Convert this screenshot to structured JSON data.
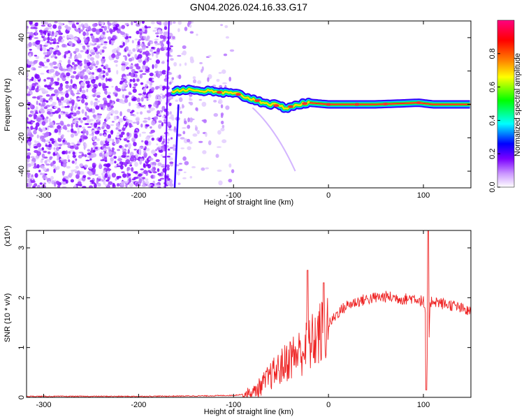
{
  "chart_data": [
    {
      "type": "heatmap",
      "title": "GN04.2026.024.16.33.G17",
      "xlabel": "Height of straight line (km)",
      "ylabel": "Frequency (Hz)",
      "xlim": [
        -318,
        150
      ],
      "ylim": [
        -50,
        50
      ],
      "xticks": [
        -300,
        -200,
        -100,
        0,
        100
      ],
      "yticks": [
        -40,
        -20,
        0,
        20,
        40
      ],
      "colorbar": {
        "label": "Normalized spectral amplitude",
        "range": [
          0,
          1
        ],
        "ticks": [
          "0.0",
          "0.2",
          "0.4",
          "0.6",
          "0.8"
        ],
        "colors": [
          "#ffffff",
          "#cc99ff",
          "#7b00ff",
          "#0000ff",
          "#00ffff",
          "#00ff00",
          "#ffff00",
          "#ff8000",
          "#ff0000",
          "#ff0080"
        ]
      },
      "ridge": {
        "description_values_only": true,
        "x": [
          -165,
          -150,
          -130,
          -110,
          -95,
          -80,
          -60,
          -45,
          -30,
          -20,
          0,
          50,
          95,
          110,
          150
        ],
        "freq_hz": [
          8,
          9,
          8,
          7,
          6,
          3,
          0,
          -2,
          0,
          1,
          0,
          0,
          1,
          0,
          0
        ]
      },
      "grid": false
    },
    {
      "type": "line",
      "xlabel": "Height of straight line (km)",
      "ylabel": "SNR (10 * v/v)",
      "scale_label": "(x10⁴)",
      "xlim": [
        -318,
        150
      ],
      "ylim": [
        0,
        3.35
      ],
      "xticks": [
        -300,
        -200,
        -100,
        0,
        100
      ],
      "yticks": [
        0,
        1,
        2,
        3
      ],
      "color": "#ee2222",
      "series_envelope": {
        "x": [
          -318,
          -250,
          -200,
          -130,
          -100,
          -80,
          -70,
          -60,
          -50,
          -40,
          -30,
          -20,
          -10,
          0,
          10,
          20,
          30,
          40,
          50,
          60,
          70,
          80,
          90,
          100,
          103,
          105,
          107,
          110,
          120,
          130,
          140,
          150
        ],
        "y": [
          0.02,
          0.02,
          0.02,
          0.03,
          0.04,
          0.08,
          0.25,
          0.45,
          0.6,
          0.8,
          0.9,
          1.05,
          1.25,
          1.45,
          1.7,
          1.85,
          1.92,
          1.97,
          2.0,
          2.02,
          2.0,
          1.97,
          2.0,
          1.92,
          1.5,
          0.3,
          1.9,
          1.95,
          1.88,
          1.85,
          1.78,
          1.7
        ]
      },
      "grid": false
    }
  ]
}
